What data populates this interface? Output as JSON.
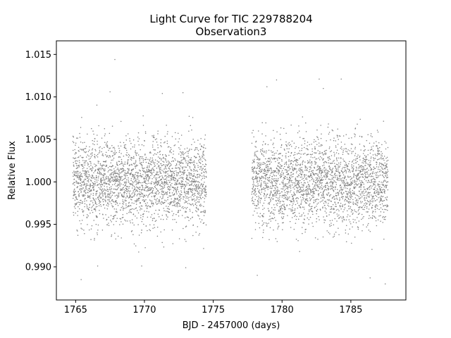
{
  "chart_data": {
    "type": "scatter",
    "title": "Light Curve for TIC 229788204",
    "subtitle": "Observation3",
    "xlabel": "BJD - 2457000 (days)",
    "ylabel": "Relative Flux",
    "xlim": [
      1763.6,
      1789.0
    ],
    "ylim": [
      0.9861,
      1.0166
    ],
    "xticks": [
      1765,
      1770,
      1775,
      1780,
      1785
    ],
    "yticks": [
      0.99,
      0.995,
      1.0,
      1.005,
      1.01,
      1.015
    ],
    "xtick_labels": [
      "1765",
      "1770",
      "1775",
      "1780",
      "1785"
    ],
    "ytick_labels": [
      "0.990",
      "0.995",
      "1.000",
      "1.005",
      "1.010",
      "1.015"
    ],
    "grid": false,
    "marker_color": "#808080",
    "series": [
      {
        "segments": [
          {
            "x_start": 1764.8,
            "x_end": 1774.5,
            "baseline": 1.0,
            "scatter_std": 0.0025
          },
          {
            "x_start": 1777.8,
            "x_end": 1787.7,
            "baseline": 1.0,
            "scatter_std": 0.0025
          }
        ],
        "outliers": [
          {
            "x": 1767.85,
            "y": 1.0144
          },
          {
            "x": 1765.4,
            "y": 0.9885
          },
          {
            "x": 1787.5,
            "y": 0.988
          },
          {
            "x": 1779.6,
            "y": 1.012
          },
          {
            "x": 1782.7,
            "y": 1.0121
          },
          {
            "x": 1784.3,
            "y": 1.0121
          },
          {
            "x": 1783.0,
            "y": 1.011
          },
          {
            "x": 1778.9,
            "y": 1.0112
          },
          {
            "x": 1767.5,
            "y": 1.0106
          },
          {
            "x": 1772.8,
            "y": 1.0105
          },
          {
            "x": 1771.3,
            "y": 1.0104
          },
          {
            "x": 1773.0,
            "y": 0.9899
          },
          {
            "x": 1769.8,
            "y": 0.9901
          },
          {
            "x": 1766.6,
            "y": 0.9901
          },
          {
            "x": 1786.4,
            "y": 0.9887
          },
          {
            "x": 1778.2,
            "y": 0.989
          }
        ]
      }
    ]
  }
}
